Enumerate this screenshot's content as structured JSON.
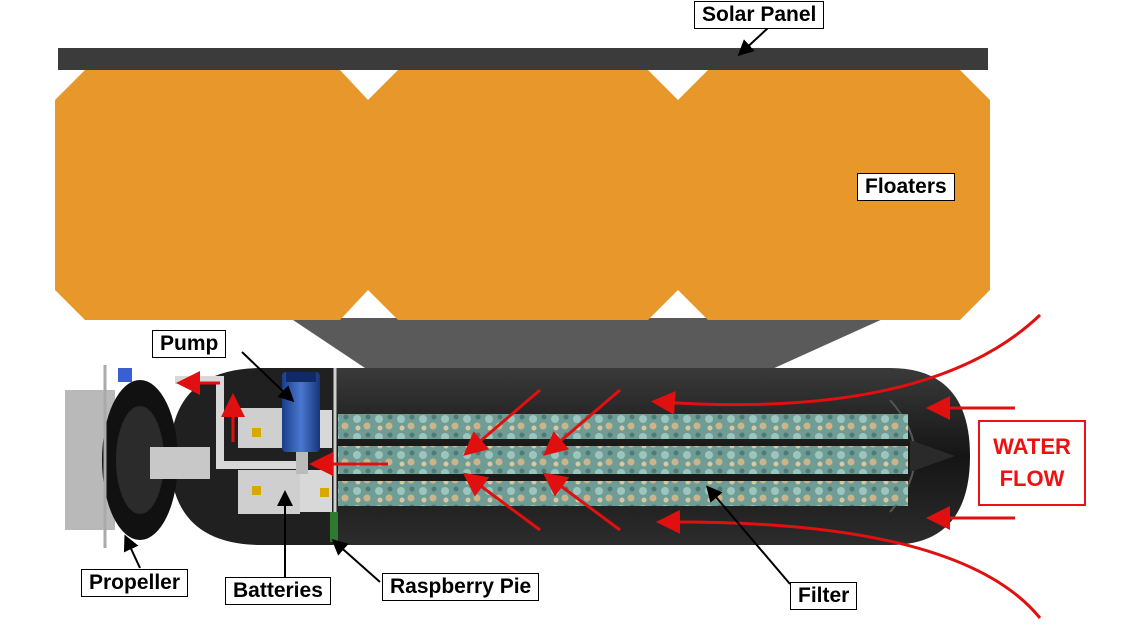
{
  "labels": {
    "solar_panel": "Solar Panel",
    "floaters": "Floaters",
    "pump": "Pump",
    "propeller": "Propeller",
    "batteries": "Batteries",
    "raspberry_pie": "Raspberry Pie",
    "filter": "Filter"
  },
  "water_flow": {
    "line1": "WATER",
    "line2": "FLOW"
  },
  "colors": {
    "floater": "#E8972A",
    "panel": "#3b3b3b",
    "hull": "#1e1e1e",
    "arrow": "#e01010",
    "filter": "#7ea8a0"
  }
}
